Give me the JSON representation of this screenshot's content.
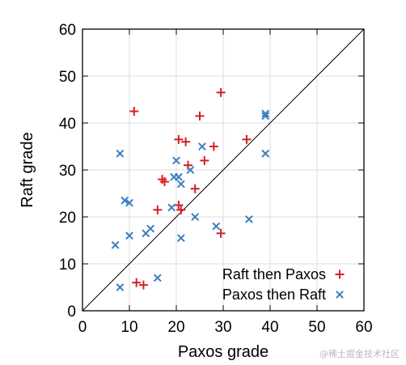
{
  "chart_data": {
    "type": "scatter",
    "xlabel": "Paxos grade",
    "ylabel": "Raft grade",
    "xlim": [
      0,
      60
    ],
    "ylim": [
      0,
      60
    ],
    "xticks": [
      "0",
      "10",
      "20",
      "30",
      "40",
      "50",
      "60"
    ],
    "yticks": [
      "0",
      "10",
      "20",
      "30",
      "40",
      "50",
      "60"
    ],
    "grid": true,
    "diagonal_reference_line": true,
    "legend_position": "bottom-right",
    "series": [
      {
        "name": "Raft then Paxos",
        "marker": "plus",
        "color": "#d62020",
        "points": [
          [
            11,
            42.5
          ],
          [
            29.5,
            46.5
          ],
          [
            25,
            41.5
          ],
          [
            20.5,
            36.5
          ],
          [
            22,
            36
          ],
          [
            28,
            35
          ],
          [
            35,
            36.5
          ],
          [
            26,
            32
          ],
          [
            22.5,
            31
          ],
          [
            17,
            28
          ],
          [
            17.5,
            27.5
          ],
          [
            24,
            26
          ],
          [
            16,
            21.5
          ],
          [
            20.5,
            22.5
          ],
          [
            21,
            21.5
          ],
          [
            29.5,
            16.5
          ],
          [
            11.5,
            6
          ],
          [
            13,
            5.5
          ]
        ]
      },
      {
        "name": "Paxos then Raft",
        "marker": "x",
        "color": "#3a7fc0",
        "points": [
          [
            39,
            42
          ],
          [
            39,
            41.5
          ],
          [
            8,
            33.5
          ],
          [
            39,
            33.5
          ],
          [
            25.5,
            35
          ],
          [
            20,
            32
          ],
          [
            23,
            30
          ],
          [
            20.5,
            28.5
          ],
          [
            19.5,
            28.5
          ],
          [
            21,
            27
          ],
          [
            9,
            23.5
          ],
          [
            10,
            23
          ],
          [
            19,
            22
          ],
          [
            24,
            20
          ],
          [
            28.5,
            18
          ],
          [
            35.5,
            19.5
          ],
          [
            14.5,
            17.5
          ],
          [
            13.5,
            16.5
          ],
          [
            10,
            16
          ],
          [
            21,
            15.5
          ],
          [
            7,
            14
          ],
          [
            16,
            7
          ],
          [
            8,
            5
          ]
        ]
      }
    ]
  },
  "watermark": "@稀土掘金技术社区"
}
